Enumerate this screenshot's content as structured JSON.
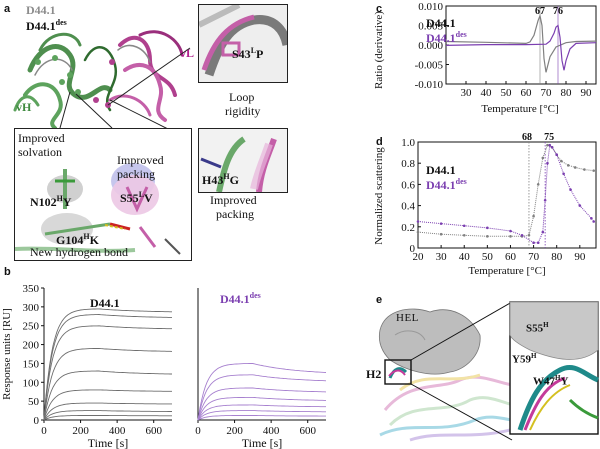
{
  "panel_labels": {
    "a": "a",
    "b": "b",
    "c": "c",
    "d": "d",
    "e": "e"
  },
  "panel_a": {
    "legend_1": "D44.1",
    "legend_2_base": "D44.1",
    "legend_2_sup": "des",
    "chain_vh": "vH",
    "chain_vl": "vL",
    "inset_loop_mut": "S43",
    "inset_loop_mut_sup": "L",
    "inset_loop_mut_tail": "P",
    "inset_loop_caption_1": "Loop",
    "inset_loop_caption_2": "rigidity",
    "inset_h43": "H43",
    "inset_h43_sup": "H",
    "inset_h43_tail": "G",
    "inset_h43_caption_1": "Improved",
    "inset_h43_caption_2": "packing",
    "main_inset_solvation_1": "Improved",
    "main_inset_solvation_2": "solvation",
    "main_inset_packing_1": "Improved",
    "main_inset_packing_2": "packing",
    "mut_n102": "N102",
    "mut_n102_sup": "H",
    "mut_n102_tail": "Y",
    "mut_s55": "S55",
    "mut_s55_sup": "L",
    "mut_s55_tail": "V",
    "mut_g104": "G104",
    "mut_g104_sup": "H",
    "mut_g104_tail": "K",
    "hbond_caption": "New hydrogen bond"
  },
  "panel_b": {
    "ylabel": "Response units [RU]",
    "title_1": "D44.1",
    "title_2_base": "D44.1",
    "title_2_sup": "des",
    "xlabel": "Time [s]",
    "color_1": "#6e6e6e",
    "color_2": "#a781cf"
  },
  "panel_c": {
    "legend_1": "D44.1",
    "legend_2_base": "D44.1",
    "legend_2_sup": "des",
    "peak_1": "67",
    "peak_2": "76",
    "ylabel": "Ratio (derivative)",
    "xlabel": "Temperature [°C]",
    "color_1": "#808080",
    "color_2": "#7b3fb0"
  },
  "panel_d": {
    "legend_1": "D44.1",
    "legend_2_base": "D44.1",
    "legend_2_sup": "des",
    "onset_1": "68",
    "onset_2": "75",
    "ylabel": "Normalized scattering",
    "xlabel": "Temperature [°C]",
    "color_1": "#808080",
    "color_2": "#7b3fb0"
  },
  "panel_e": {
    "antigen_label": "HEL",
    "h2_label": "H2",
    "res_s55": "S55",
    "res_s55_sup": "H",
    "res_y59": "Y59",
    "res_y59_sup": "H",
    "res_w47": "W47",
    "res_w47_sup": "H",
    "res_w47_tail": "Y"
  },
  "chart_data": [
    {
      "type": "line",
      "panel": "b-left",
      "title": "D44.1",
      "xlabel": "Time [s]",
      "ylabel": "Response units [RU]",
      "xlim": [
        0,
        700
      ],
      "ylim": [
        0,
        350
      ],
      "xticks": [
        0,
        200,
        400,
        600
      ],
      "yticks": [
        0,
        50,
        100,
        150,
        200,
        250,
        300,
        350
      ],
      "association_end_s": 300,
      "series": [
        {
          "plateau": 295,
          "end": 285
        },
        {
          "plateau": 280,
          "end": 270
        },
        {
          "plateau": 250,
          "end": 240
        },
        {
          "plateau": 190,
          "end": 180
        },
        {
          "plateau": 130,
          "end": 120
        },
        {
          "plateau": 80,
          "end": 75
        },
        {
          "plateau": 45,
          "end": 42
        },
        {
          "plateau": 25,
          "end": 22
        },
        {
          "plateau": 12,
          "end": 11
        }
      ]
    },
    {
      "type": "line",
      "panel": "b-right",
      "title": "D44.1des",
      "xlabel": "Time [s]",
      "xlim": [
        0,
        700
      ],
      "ylim": [
        0,
        350
      ],
      "xticks": [
        0,
        200,
        400,
        600
      ],
      "association_end_s": 300,
      "series": [
        {
          "plateau": 150,
          "end": 120
        },
        {
          "plateau": 120,
          "end": 100
        },
        {
          "plateau": 85,
          "end": 72
        },
        {
          "plateau": 60,
          "end": 50
        },
        {
          "plateau": 40,
          "end": 34
        },
        {
          "plateau": 25,
          "end": 21
        },
        {
          "plateau": 12,
          "end": 10
        }
      ]
    },
    {
      "type": "line",
      "panel": "c",
      "xlabel": "Temperature [°C]",
      "ylabel": "Ratio (derivative)",
      "xlim": [
        20,
        95
      ],
      "ylim": [
        -0.01,
        0.01
      ],
      "xticks": [
        30,
        40,
        50,
        60,
        70,
        80,
        90
      ],
      "yticks": [
        -0.01,
        -0.005,
        0.0,
        0.005,
        0.01
      ],
      "series": [
        {
          "name": "D44.1",
          "x": [
            20,
            40,
            60,
            62,
            64,
            66,
            67,
            68,
            69,
            70,
            72,
            75,
            80,
            85,
            95
          ],
          "y": [
            0.0009,
            0.0007,
            0.0004,
            0.0008,
            0.0025,
            0.0062,
            0.0075,
            0.005,
            -0.0035,
            -0.007,
            -0.003,
            -0.0005,
            0.0006,
            0.0009,
            0.001
          ]
        },
        {
          "name": "D44.1des",
          "x": [
            20,
            40,
            60,
            70,
            72,
            74,
            75,
            76,
            77,
            78,
            79,
            80,
            82,
            85,
            95
          ],
          "y": [
            -0.0001,
            0.0001,
            0.0001,
            0.0002,
            0.001,
            0.003,
            0.0046,
            0.005,
            0.002,
            -0.004,
            -0.0065,
            -0.004,
            -0.001,
            0.0004,
            0.0006
          ]
        }
      ],
      "vlines": [
        67,
        76
      ]
    },
    {
      "type": "scatter",
      "panel": "d",
      "xlabel": "Temperature [°C]",
      "ylabel": "Normalized scattering",
      "xlim": [
        20,
        97
      ],
      "ylim": [
        0,
        1.0
      ],
      "xticks": [
        20,
        30,
        40,
        50,
        60,
        70,
        80,
        90
      ],
      "yticks": [
        0,
        0.2,
        0.4,
        0.6,
        0.8,
        1.0
      ],
      "series": [
        {
          "name": "D44.1",
          "x": [
            20,
            30,
            40,
            50,
            60,
            65,
            68,
            70,
            72,
            74,
            76,
            78,
            80,
            82,
            85,
            88,
            92,
            96
          ],
          "y": [
            0.15,
            0.13,
            0.12,
            0.11,
            0.11,
            0.11,
            0.12,
            0.3,
            0.6,
            0.85,
            0.97,
            0.95,
            0.88,
            0.82,
            0.78,
            0.76,
            0.74,
            0.73
          ]
        },
        {
          "name": "D44.1des",
          "x": [
            20,
            30,
            40,
            50,
            60,
            65,
            70,
            72,
            74,
            75,
            76,
            77,
            78,
            80,
            83,
            86,
            90,
            95,
            96
          ],
          "y": [
            0.25,
            0.23,
            0.21,
            0.19,
            0.16,
            0.12,
            0.05,
            0.05,
            0.15,
            0.45,
            0.8,
            0.97,
            0.95,
            0.88,
            0.7,
            0.55,
            0.4,
            0.28,
            0.25
          ]
        }
      ],
      "vlines": [
        68,
        75
      ]
    }
  ]
}
